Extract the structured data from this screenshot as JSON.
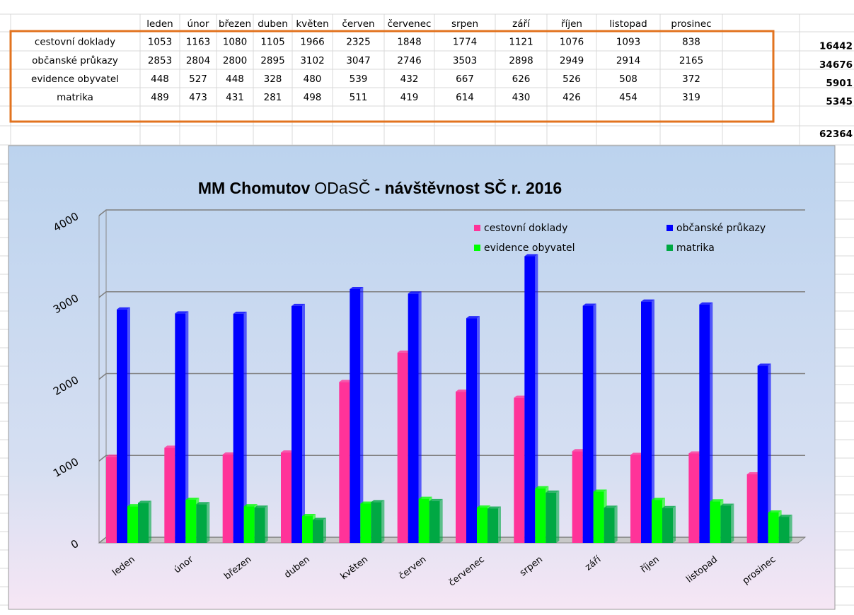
{
  "table": {
    "row_totals": [
      16442,
      34676,
      5901,
      5345
    ],
    "row_total_colors": [
      "#1f78d1",
      "#1560bd",
      "#1560bd",
      "#35b6ea"
    ],
    "grand_total": 62364,
    "grand_total_color": "#1f78d1"
  },
  "chart_data": {
    "type": "bar",
    "title": [
      "MM Chomutov",
      "ODaSČ",
      "- návštěvnost SČ r. 2016"
    ],
    "categories": [
      "leden",
      "únor",
      "březen",
      "duben",
      "květen",
      "červen",
      "červenec",
      "srpen",
      "září",
      "říjen",
      "listopad",
      "prosinec"
    ],
    "series": [
      {
        "name": "cestovní doklady",
        "color": "#ff3399",
        "values": [
          1053,
          1163,
          1080,
          1105,
          1966,
          2325,
          1848,
          1774,
          1121,
          1076,
          1093,
          838
        ]
      },
      {
        "name": "občanské průkazy",
        "color": "#0000ff",
        "values": [
          2853,
          2804,
          2800,
          2895,
          3102,
          3047,
          2746,
          3503,
          2898,
          2949,
          2914,
          2165
        ]
      },
      {
        "name": "evidence obyvatel",
        "color": "#00ff00",
        "values": [
          448,
          527,
          448,
          328,
          480,
          539,
          432,
          667,
          626,
          526,
          508,
          372
        ]
      },
      {
        "name": "matrika",
        "color": "#00a843",
        "values": [
          489,
          473,
          431,
          281,
          498,
          511,
          419,
          614,
          430,
          426,
          454,
          319
        ]
      }
    ],
    "ylim": [
      0,
      4000
    ],
    "yticks": [
      0,
      1000,
      2000,
      3000,
      4000
    ],
    "grid": true,
    "legend": "top-right"
  }
}
